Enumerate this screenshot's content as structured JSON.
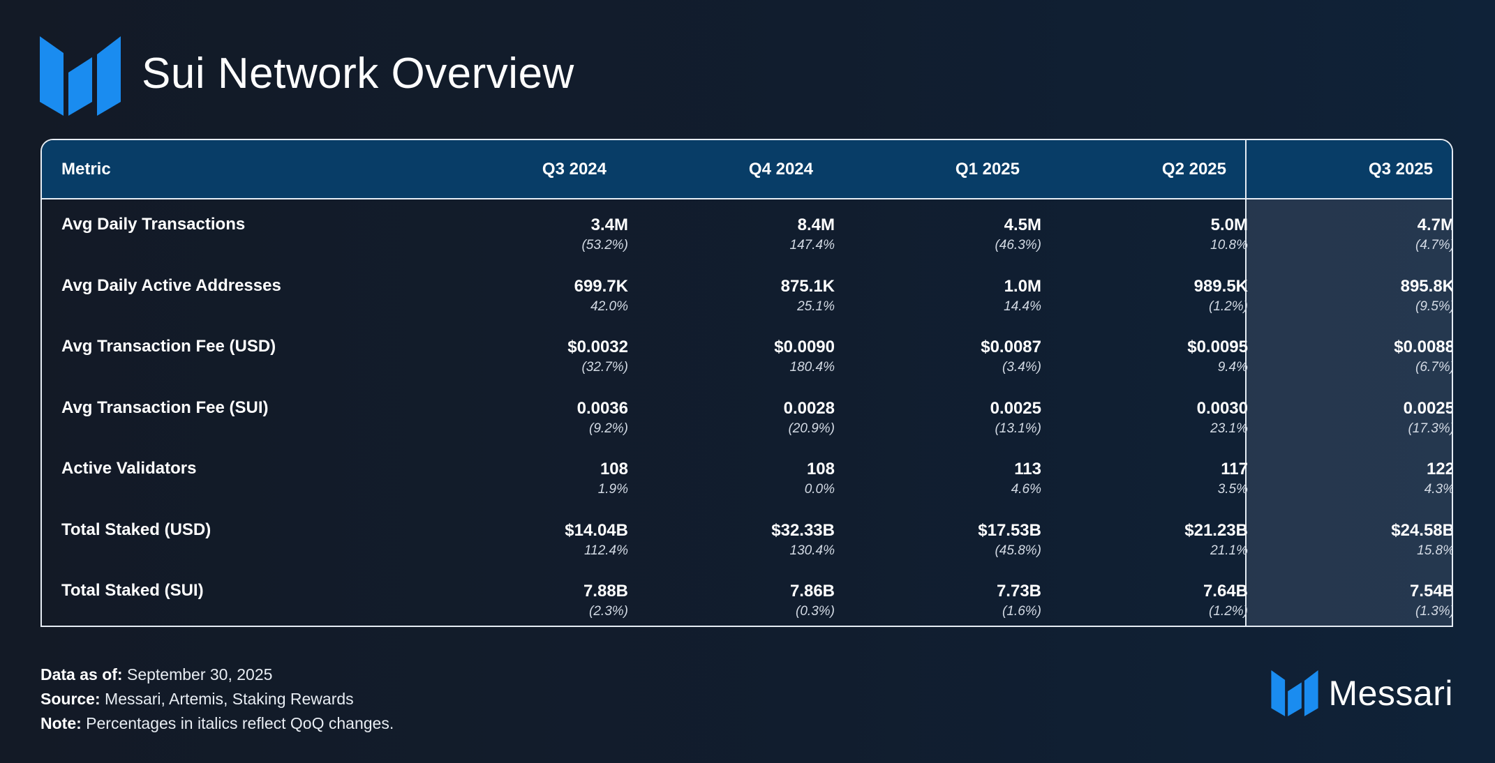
{
  "header": {
    "title": "Sui Network Overview",
    "logo_icon": "messari-m-logo-icon",
    "brand_color": "#1a8cf0"
  },
  "chart_data": {
    "type": "table",
    "title": "Sui Network Overview",
    "columns": [
      "Metric",
      "Q3 2024",
      "Q4 2024",
      "Q1 2025",
      "Q2 2025",
      "Q3 2025"
    ],
    "highlighted_column": "Q3 2025",
    "header_color": "#083d67",
    "rows": [
      {
        "metric": "Avg Daily Transactions",
        "values": [
          "3.4M",
          "8.4M",
          "4.5M",
          "5.0M",
          "4.7M"
        ],
        "changes": [
          "(53.2%)",
          "147.4%",
          "(46.3%)",
          "10.8%",
          "(4.7%)"
        ]
      },
      {
        "metric": "Avg Daily Active Addresses",
        "values": [
          "699.7K",
          "875.1K",
          "1.0M",
          "989.5K",
          "895.8K"
        ],
        "changes": [
          "42.0%",
          "25.1%",
          "14.4%",
          "(1.2%)",
          "(9.5%)"
        ]
      },
      {
        "metric": "Avg Transaction Fee (USD)",
        "values": [
          "$0.0032",
          "$0.0090",
          "$0.0087",
          "$0.0095",
          "$0.0088"
        ],
        "changes": [
          "(32.7%)",
          "180.4%",
          "(3.4%)",
          "9.4%",
          "(6.7%)"
        ]
      },
      {
        "metric": "Avg Transaction Fee (SUI)",
        "values": [
          "0.0036",
          "0.0028",
          "0.0025",
          "0.0030",
          "0.0025"
        ],
        "changes": [
          "(9.2%)",
          "(20.9%)",
          "(13.1%)",
          "23.1%",
          "(17.3%)"
        ]
      },
      {
        "metric": "Active Validators",
        "values": [
          "108",
          "108",
          "113",
          "117",
          "122"
        ],
        "changes": [
          "1.9%",
          "0.0%",
          "4.6%",
          "3.5%",
          "4.3%"
        ]
      },
      {
        "metric": "Total Staked (USD)",
        "values": [
          "$14.04B",
          "$32.33B",
          "$17.53B",
          "$21.23B",
          "$24.58B"
        ],
        "changes": [
          "112.4%",
          "130.4%",
          "(45.8%)",
          "21.1%",
          "15.8%"
        ]
      },
      {
        "metric": "Total Staked (SUI)",
        "values": [
          "7.88B",
          "7.86B",
          "7.73B",
          "7.64B",
          "7.54B"
        ],
        "changes": [
          "(2.3%)",
          "(0.3%)",
          "(1.6%)",
          "(1.2%)",
          "(1.3%)"
        ]
      }
    ]
  },
  "footer": {
    "data_as_of_label": "Data as of:",
    "data_as_of_value": "September 30, 2025",
    "source_label": "Source:",
    "source_value": "Messari, Artemis, Staking Rewards",
    "note_label": "Note:",
    "note_value": "Percentages in italics reflect QoQ changes.",
    "brand_name": "Messari",
    "brand_icon": "messari-m-logo-icon"
  }
}
